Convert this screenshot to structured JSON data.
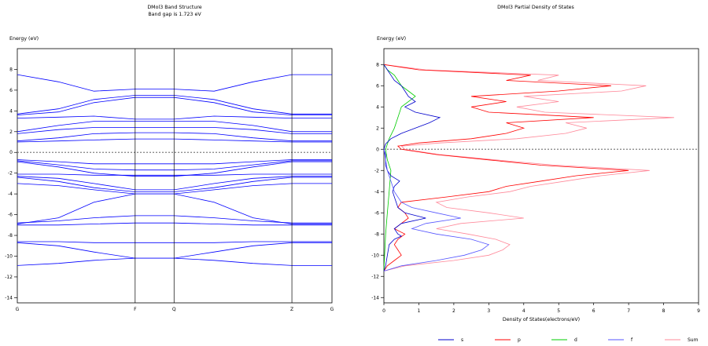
{
  "chart_data": [
    {
      "type": "line",
      "title": "DMol3 Band Structure",
      "subtitle": "Band gap is 1.723 eV",
      "ylabel": "Energy (eV)",
      "xlabel": "",
      "ylim": [
        -14.5,
        10
      ],
      "yticks": [
        8,
        6,
        4,
        2,
        0,
        -2,
        -4,
        -6,
        -8,
        -10,
        -12,
        -14
      ],
      "x_kpoints": [
        {
          "label": "G",
          "x": 0.0
        },
        {
          "label": "F",
          "x": 1.0
        },
        {
          "label": "Q",
          "x": 1.33
        },
        {
          "label": "Z",
          "x": 2.33
        },
        {
          "label": "G",
          "x": 2.67
        }
      ],
      "fermi_level": 0,
      "grid": false,
      "line_color": "#0000ff",
      "fermi_color": "#808080",
      "series": [
        {
          "x": [
            0,
            0.35,
            0.65,
            1.0,
            1.33,
            1.67,
            2.0,
            2.33,
            2.67
          ],
          "values": [
            7.5,
            6.8,
            5.9,
            6.1,
            6.1,
            5.9,
            6.8,
            7.5,
            7.5
          ]
        },
        {
          "x": [
            0,
            0.35,
            0.65,
            1.0,
            1.33,
            1.67,
            2.0,
            2.33,
            2.67
          ],
          "values": [
            3.7,
            4.2,
            5.1,
            5.5,
            5.5,
            5.1,
            4.2,
            3.7,
            3.7
          ]
        },
        {
          "x": [
            0,
            0.35,
            0.65,
            1.0,
            1.33,
            1.67,
            2.0,
            2.33,
            2.67
          ],
          "values": [
            3.6,
            3.9,
            4.8,
            5.3,
            5.3,
            4.8,
            3.9,
            3.6,
            3.6
          ]
        },
        {
          "x": [
            0,
            0.35,
            0.65,
            1.0,
            1.33,
            1.67,
            2.0,
            2.33,
            2.67
          ],
          "values": [
            3.3,
            3.4,
            3.5,
            3.2,
            3.2,
            3.5,
            3.4,
            3.3,
            3.3
          ]
        },
        {
          "x": [
            0,
            0.35,
            0.65,
            1.0,
            1.33,
            1.67,
            2.0,
            2.33,
            2.67
          ],
          "values": [
            2.0,
            2.6,
            3.0,
            3.0,
            3.0,
            3.0,
            2.6,
            2.0,
            2.0
          ]
        },
        {
          "x": [
            0,
            0.35,
            0.65,
            1.0,
            1.33,
            1.67,
            2.0,
            2.33,
            2.67
          ],
          "values": [
            1.8,
            2.2,
            2.4,
            2.4,
            2.4,
            2.4,
            2.2,
            1.8,
            1.8
          ]
        },
        {
          "x": [
            0,
            0.35,
            0.65,
            1.0,
            1.33,
            1.67,
            2.0,
            2.33,
            2.67
          ],
          "values": [
            1.1,
            1.4,
            1.8,
            1.9,
            1.9,
            1.8,
            1.4,
            1.1,
            1.1
          ]
        },
        {
          "x": [
            0,
            0.35,
            0.65,
            1.0,
            1.33,
            1.67,
            2.0,
            2.33,
            2.67
          ],
          "values": [
            1.0,
            1.1,
            1.2,
            1.3,
            1.3,
            1.2,
            1.1,
            1.0,
            1.0
          ]
        },
        {
          "x": [
            0,
            0.35,
            0.65,
            1.0,
            1.33,
            1.67,
            2.0,
            2.33,
            2.67
          ],
          "values": [
            -0.7,
            -0.9,
            -1.1,
            -1.1,
            -1.1,
            -1.1,
            -0.9,
            -0.7,
            -0.7
          ]
        },
        {
          "x": [
            0,
            0.35,
            0.65,
            1.0,
            1.33,
            1.67,
            2.0,
            2.33,
            2.67
          ],
          "values": [
            -0.8,
            -1.2,
            -1.6,
            -1.7,
            -1.7,
            -1.6,
            -1.2,
            -0.8,
            -0.8
          ]
        },
        {
          "x": [
            0,
            0.35,
            0.65,
            1.0,
            1.33,
            1.67,
            2.0,
            2.33,
            2.67
          ],
          "values": [
            -0.9,
            -1.4,
            -2.0,
            -2.3,
            -2.3,
            -2.0,
            -1.4,
            -0.9,
            -0.9
          ]
        },
        {
          "x": [
            0,
            0.35,
            0.65,
            1.0,
            1.33,
            1.67,
            2.0,
            2.33,
            2.67
          ],
          "values": [
            -2.1,
            -2.1,
            -2.2,
            -2.2,
            -2.2,
            -2.2,
            -2.1,
            -2.1,
            -2.1
          ]
        },
        {
          "x": [
            0,
            0.35,
            0.65,
            1.0,
            1.33,
            1.67,
            2.0,
            2.33,
            2.67
          ],
          "values": [
            -2.3,
            -2.5,
            -3.0,
            -3.6,
            -3.6,
            -3.0,
            -2.5,
            -2.3,
            -2.3
          ]
        },
        {
          "x": [
            0,
            0.35,
            0.65,
            1.0,
            1.33,
            1.67,
            2.0,
            2.33,
            2.67
          ],
          "values": [
            -2.4,
            -2.8,
            -3.4,
            -3.8,
            -3.8,
            -3.4,
            -2.8,
            -2.4,
            -2.4
          ]
        },
        {
          "x": [
            0,
            0.35,
            0.65,
            1.0,
            1.33,
            1.67,
            2.0,
            2.33,
            2.67
          ],
          "values": [
            -3.0,
            -3.2,
            -3.6,
            -4.0,
            -4.0,
            -3.6,
            -3.2,
            -3.0,
            -3.0
          ]
        },
        {
          "x": [
            0,
            0.35,
            0.65,
            1.0,
            1.33,
            1.67,
            2.0,
            2.33,
            2.67
          ],
          "values": [
            -6.9,
            -6.3,
            -4.8,
            -4.0,
            -4.0,
            -4.8,
            -6.3,
            -6.9,
            -6.9
          ]
        },
        {
          "x": [
            0,
            0.35,
            0.65,
            1.0,
            1.33,
            1.67,
            2.0,
            2.33,
            2.67
          ],
          "values": [
            -6.8,
            -6.6,
            -6.3,
            -6.1,
            -6.1,
            -6.3,
            -6.6,
            -6.8,
            -6.8
          ]
        },
        {
          "x": [
            0,
            0.35,
            0.65,
            1.0,
            1.33,
            1.67,
            2.0,
            2.33,
            2.67
          ],
          "values": [
            -7.0,
            -7.0,
            -6.9,
            -6.8,
            -6.8,
            -6.9,
            -7.0,
            -7.0,
            -7.0
          ]
        },
        {
          "x": [
            0,
            0.35,
            0.65,
            1.0,
            1.33,
            1.67,
            2.0,
            2.33,
            2.67
          ],
          "values": [
            -8.6,
            -8.6,
            -8.7,
            -8.7,
            -8.7,
            -8.7,
            -8.6,
            -8.6,
            -8.6
          ]
        },
        {
          "x": [
            0,
            0.35,
            0.65,
            1.0,
            1.33,
            1.67,
            2.0,
            2.33,
            2.67
          ],
          "values": [
            -8.7,
            -9.0,
            -9.6,
            -10.2,
            -10.2,
            -9.6,
            -9.0,
            -8.7,
            -8.7
          ]
        },
        {
          "x": [
            0,
            0.35,
            0.65,
            1.0,
            1.33,
            1.67,
            2.0,
            2.33,
            2.67
          ],
          "values": [
            -10.9,
            -10.7,
            -10.4,
            -10.2,
            -10.2,
            -10.4,
            -10.7,
            -10.9,
            -10.9
          ]
        }
      ]
    },
    {
      "type": "line",
      "orientation": "horizontal",
      "title": "DMol3 Partial  Density of States",
      "ylabel": "Energy (eV)",
      "xlabel": "Density of States(electrons/eV)",
      "xlim": [
        0,
        9
      ],
      "ylim": [
        -14.5,
        9.5
      ],
      "xticks": [
        0,
        1,
        2,
        3,
        4,
        5,
        6,
        7,
        8,
        9
      ],
      "yticks": [
        8,
        6,
        4,
        2,
        0,
        -2,
        -4,
        -6,
        -8,
        -10,
        -12,
        -14
      ],
      "fermi_level": 0,
      "grid": false,
      "legend": "bottom",
      "series": [
        {
          "name": "s",
          "color": "#0000cc",
          "energy": [
            -11.5,
            -11.0,
            -10.0,
            -9.0,
            -8.5,
            -8.2,
            -8.0,
            -7.5,
            -7.0,
            -6.5,
            -6.0,
            -5.5,
            -5.0,
            -4.5,
            -4.0,
            -3.5,
            -3.0,
            -2.5,
            -2.0,
            -1.5,
            -1.0,
            -0.5,
            0.0,
            0.5,
            1.0,
            1.5,
            2.0,
            2.5,
            3.0,
            3.5,
            4.0,
            4.5,
            5.0,
            5.5,
            6.0,
            6.5,
            7.0,
            7.5,
            8.0
          ],
          "values": [
            0.0,
            0.05,
            0.1,
            0.15,
            0.3,
            0.5,
            0.4,
            0.3,
            0.5,
            1.2,
            0.6,
            0.4,
            0.35,
            0.3,
            0.25,
            0.3,
            0.45,
            0.2,
            0.1,
            0.05,
            0.05,
            0.05,
            0.0,
            0.05,
            0.2,
            0.5,
            0.9,
            1.3,
            1.6,
            0.9,
            0.6,
            0.9,
            0.7,
            0.6,
            0.5,
            0.3,
            0.2,
            0.1,
            0.0
          ]
        },
        {
          "name": "p",
          "color": "#ff0000",
          "energy": [
            -11.5,
            -11.0,
            -10.5,
            -10.0,
            -9.5,
            -9.0,
            -8.5,
            -8.0,
            -7.5,
            -7.0,
            -6.5,
            -6.0,
            -5.5,
            -5.0,
            -4.5,
            -4.0,
            -3.5,
            -3.0,
            -2.5,
            -2.0,
            -1.5,
            -1.0,
            -0.5,
            0.0,
            0.3,
            0.6,
            1.0,
            1.5,
            2.0,
            2.5,
            3.0,
            3.5,
            4.0,
            4.5,
            5.0,
            5.5,
            6.0,
            6.5,
            7.0,
            7.5,
            8.0
          ],
          "values": [
            0.0,
            0.1,
            0.3,
            0.5,
            0.4,
            0.3,
            0.4,
            0.6,
            0.3,
            0.5,
            0.7,
            0.6,
            0.4,
            0.5,
            1.8,
            3.0,
            3.5,
            4.5,
            5.5,
            7.0,
            4.5,
            3.0,
            1.5,
            0.5,
            0.4,
            1.0,
            2.5,
            3.5,
            4.0,
            3.5,
            6.0,
            3.0,
            2.5,
            3.5,
            2.5,
            5.0,
            6.5,
            3.5,
            4.2,
            1.0,
            0.0
          ]
        },
        {
          "name": "d",
          "color": "#00cc00",
          "energy": [
            -11.5,
            -10.0,
            -8.0,
            -6.0,
            -4.0,
            -2.0,
            -1.0,
            0.0,
            1.0,
            2.0,
            3.0,
            4.0,
            5.0,
            5.5,
            6.0,
            6.5,
            7.0,
            7.5,
            8.0
          ],
          "values": [
            0.0,
            0.02,
            0.05,
            0.1,
            0.15,
            0.2,
            0.1,
            0.05,
            0.15,
            0.3,
            0.4,
            0.5,
            0.9,
            0.7,
            0.5,
            0.4,
            0.3,
            0.1,
            0.0
          ]
        },
        {
          "name": "f",
          "color": "#5555ff",
          "energy": [
            -11.5,
            -11.0,
            -10.5,
            -10.0,
            -9.5,
            -9.0,
            -8.5,
            -8.0,
            -7.5,
            -7.0,
            -6.5,
            -6.0,
            -5.5,
            -5.0,
            -4.0,
            -3.0,
            -2.0,
            -1.0,
            0.0
          ],
          "values": [
            0.0,
            0.5,
            1.5,
            2.3,
            2.8,
            3.0,
            2.5,
            1.5,
            0.8,
            1.2,
            2.2,
            1.5,
            0.8,
            0.5,
            0.3,
            0.2,
            0.1,
            0.05,
            0.0
          ]
        },
        {
          "name": "Sum",
          "color": "#ff8899",
          "energy": [
            -11.5,
            -11.0,
            -10.5,
            -10.0,
            -9.5,
            -9.0,
            -8.5,
            -8.0,
            -7.5,
            -7.0,
            -6.5,
            -6.0,
            -5.5,
            -5.0,
            -4.5,
            -4.0,
            -3.5,
            -3.0,
            -2.5,
            -2.0,
            -1.5,
            -1.0,
            -0.5,
            0.0,
            0.3,
            0.6,
            1.0,
            1.5,
            2.0,
            2.5,
            3.0,
            3.5,
            4.0,
            4.5,
            5.0,
            5.5,
            6.0,
            6.5,
            7.0,
            7.5,
            8.0
          ],
          "values": [
            0.0,
            0.6,
            2.0,
            3.0,
            3.4,
            3.6,
            3.2,
            2.4,
            1.5,
            2.2,
            4.0,
            3.0,
            1.8,
            1.5,
            2.4,
            3.6,
            4.2,
            5.2,
            6.2,
            7.6,
            4.9,
            3.2,
            1.6,
            0.6,
            0.5,
            1.6,
            3.8,
            5.2,
            5.8,
            5.2,
            8.3,
            4.6,
            3.8,
            5.0,
            4.0,
            6.8,
            7.5,
            4.4,
            5.0,
            1.2,
            0.0
          ]
        }
      ]
    }
  ]
}
